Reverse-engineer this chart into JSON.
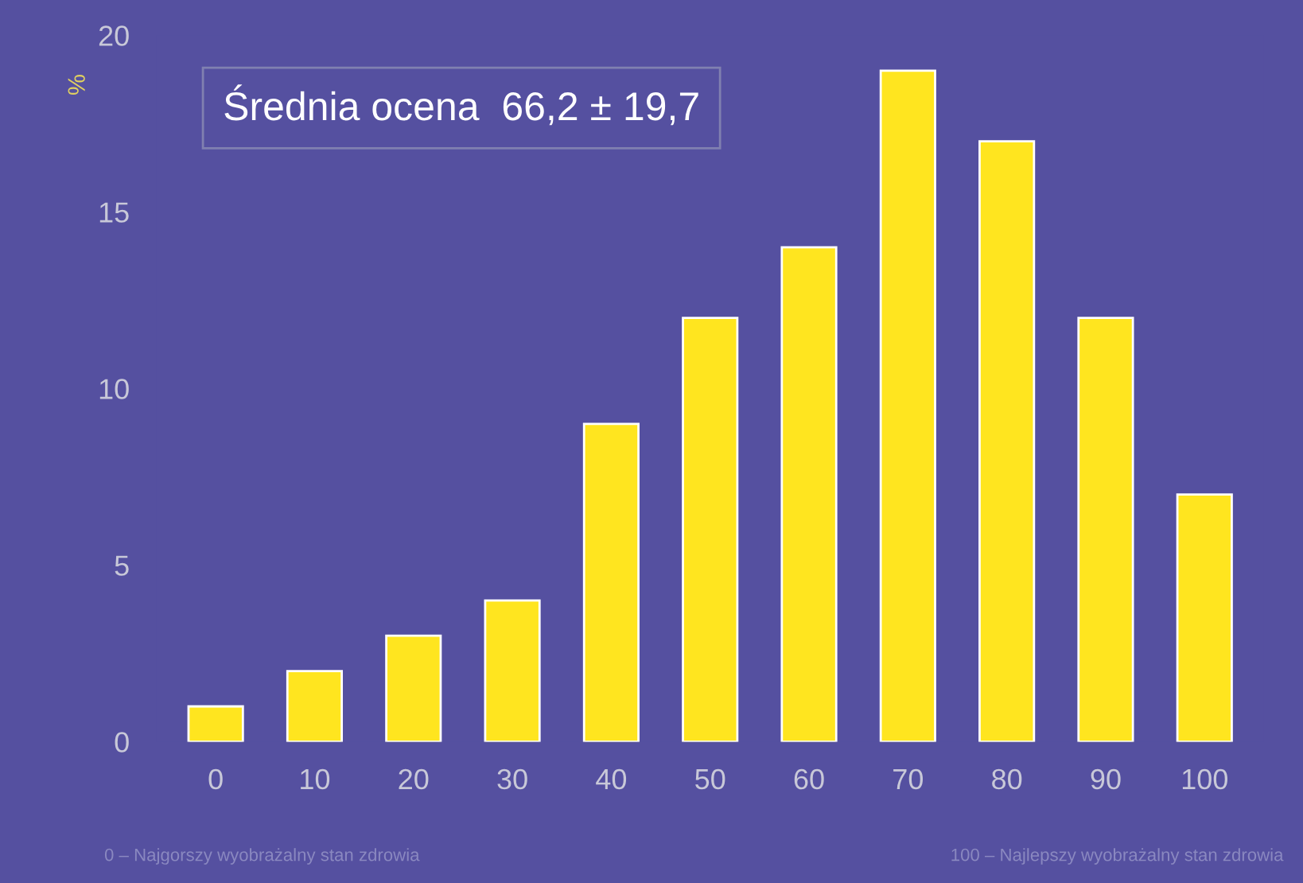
{
  "chart_data": {
    "type": "bar",
    "ylabel": "%",
    "categories": [
      "0",
      "10",
      "20",
      "30",
      "40",
      "50",
      "60",
      "70",
      "80",
      "90",
      "100"
    ],
    "values": [
      1,
      2,
      3,
      4,
      9,
      12,
      14,
      19,
      17,
      12,
      7
    ],
    "color": "#ffe51f",
    "ylim": [
      0,
      20
    ],
    "yticks": [
      0,
      5,
      10,
      15,
      20
    ],
    "grid": false,
    "annotations": [
      "Średnia ocena  66,2 ± 19,7",
      "0 – Najgorszy wyobrażalny stan zdrowia",
      "100 – Najlepszy wyobrażalny stan zdrowia"
    ]
  }
}
